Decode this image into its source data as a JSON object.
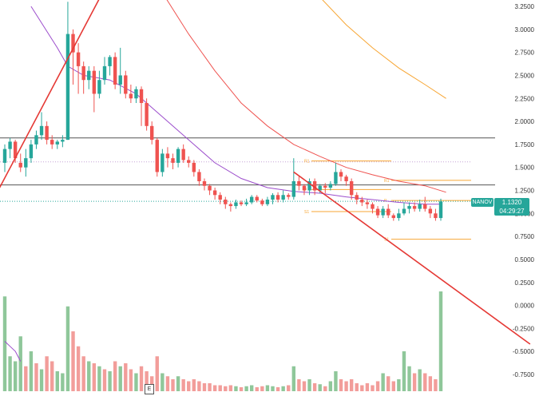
{
  "chart_data": {
    "type": "candlestick",
    "symbol": "NANOV",
    "last_price": "1.1320",
    "countdown": "04:29:27",
    "price_axis": {
      "ticks": [
        "3.2500",
        "3.0000",
        "2.7500",
        "2.5000",
        "2.2500",
        "2.0000",
        "1.7500",
        "1.5000",
        "1.2500",
        "1.0000",
        "0.7500",
        "0.5000",
        "0.2500",
        "0.0000",
        "-0.2500",
        "-0.5000",
        "-0.7500"
      ],
      "tick_values": [
        3.25,
        3.0,
        2.75,
        2.5,
        2.25,
        2.0,
        1.75,
        1.5,
        1.25,
        1.0,
        0.75,
        0.5,
        0.25,
        0.0,
        -0.25,
        -0.5,
        -0.75
      ],
      "range": [
        -0.98,
        3.33
      ]
    },
    "candles": [
      [
        1.55,
        1.7,
        1.45,
        1.75
      ],
      [
        1.7,
        1.78,
        1.6,
        1.82
      ],
      [
        1.78,
        1.6,
        1.55,
        1.8
      ],
      [
        1.55,
        1.5,
        1.45,
        1.65
      ],
      [
        1.5,
        1.6,
        1.4,
        1.7
      ],
      [
        1.6,
        1.75,
        1.55,
        1.8
      ],
      [
        1.75,
        1.85,
        1.7,
        1.9
      ],
      [
        1.85,
        1.95,
        1.8,
        2.1
      ],
      [
        1.95,
        1.8,
        1.75,
        2.0
      ],
      [
        1.8,
        1.75,
        1.7,
        1.85
      ],
      [
        1.75,
        1.78,
        1.7,
        1.8
      ],
      [
        1.78,
        1.8,
        1.72,
        1.85
      ],
      [
        1.8,
        2.95,
        1.8,
        3.3
      ],
      [
        2.95,
        2.75,
        2.4,
        3.0
      ],
      [
        2.75,
        2.6,
        2.3,
        2.85
      ],
      [
        2.6,
        2.45,
        2.3,
        2.65
      ],
      [
        2.45,
        2.55,
        2.35,
        2.6
      ],
      [
        2.55,
        2.3,
        2.1,
        2.6
      ],
      [
        2.3,
        2.45,
        2.25,
        2.55
      ],
      [
        2.45,
        2.6,
        2.4,
        2.7
      ],
      [
        2.6,
        2.7,
        2.5,
        2.72
      ],
      [
        2.7,
        2.4,
        2.35,
        2.75
      ],
      [
        2.4,
        2.5,
        2.3,
        2.8
      ],
      [
        2.5,
        2.3,
        2.25,
        2.55
      ],
      [
        2.3,
        2.25,
        2.2,
        2.4
      ],
      [
        2.25,
        2.35,
        2.2,
        2.38
      ],
      [
        2.35,
        2.2,
        1.95,
        2.38
      ],
      [
        2.2,
        1.95,
        1.9,
        2.25
      ],
      [
        1.95,
        1.8,
        1.75,
        2.0
      ],
      [
        1.8,
        1.45,
        1.4,
        1.82
      ],
      [
        1.45,
        1.65,
        1.4,
        1.7
      ],
      [
        1.65,
        1.6,
        1.5,
        1.72
      ],
      [
        1.6,
        1.55,
        1.48,
        1.65
      ],
      [
        1.55,
        1.7,
        1.5,
        1.72
      ],
      [
        1.7,
        1.58,
        1.55,
        1.75
      ],
      [
        1.58,
        1.55,
        1.5,
        1.62
      ],
      [
        1.55,
        1.45,
        1.4,
        1.58
      ],
      [
        1.45,
        1.35,
        1.3,
        1.48
      ],
      [
        1.35,
        1.3,
        1.25,
        1.38
      ],
      [
        1.3,
        1.25,
        1.2,
        1.32
      ],
      [
        1.25,
        1.2,
        1.15,
        1.28
      ],
      [
        1.2,
        1.15,
        1.1,
        1.23
      ],
      [
        1.15,
        1.1,
        1.05,
        1.18
      ],
      [
        1.1,
        1.08,
        1.02,
        1.12
      ],
      [
        1.08,
        1.12,
        1.05,
        1.15
      ],
      [
        1.12,
        1.1,
        1.08,
        1.14
      ],
      [
        1.1,
        1.12,
        1.08,
        1.16
      ],
      [
        1.12,
        1.18,
        1.1,
        1.2
      ],
      [
        1.18,
        1.14,
        1.12,
        1.2
      ],
      [
        1.14,
        1.1,
        1.08,
        1.16
      ],
      [
        1.1,
        1.15,
        1.08,
        1.18
      ],
      [
        1.15,
        1.2,
        1.1,
        1.22
      ],
      [
        1.2,
        1.15,
        1.12,
        1.23
      ],
      [
        1.15,
        1.2,
        1.12,
        1.25
      ],
      [
        1.2,
        1.18,
        1.15,
        1.22
      ],
      [
        1.18,
        1.35,
        1.15,
        1.6
      ],
      [
        1.35,
        1.3,
        1.25,
        1.4
      ],
      [
        1.3,
        1.25,
        1.2,
        1.32
      ],
      [
        1.25,
        1.35,
        1.2,
        1.38
      ],
      [
        1.35,
        1.25,
        1.2,
        1.38
      ],
      [
        1.25,
        1.3,
        1.22,
        1.32
      ],
      [
        1.3,
        1.28,
        1.22,
        1.33
      ],
      [
        1.28,
        1.32,
        1.25,
        1.35
      ],
      [
        1.32,
        1.45,
        1.3,
        1.55
      ],
      [
        1.45,
        1.4,
        1.35,
        1.48
      ],
      [
        1.4,
        1.35,
        1.3,
        1.42
      ],
      [
        1.35,
        1.2,
        1.15,
        1.38
      ],
      [
        1.2,
        1.15,
        1.1,
        1.23
      ],
      [
        1.15,
        1.12,
        1.08,
        1.18
      ],
      [
        1.12,
        1.1,
        1.05,
        1.15
      ],
      [
        1.1,
        1.05,
        1.0,
        1.12
      ],
      [
        1.05,
        0.98,
        0.95,
        1.08
      ],
      [
        0.98,
        1.05,
        0.95,
        1.08
      ],
      [
        1.05,
        0.98,
        0.95,
        1.1
      ],
      [
        0.98,
        0.95,
        0.92,
        1.0
      ],
      [
        0.95,
        1.0,
        0.92,
        1.05
      ],
      [
        1.0,
        1.05,
        0.98,
        1.12
      ],
      [
        1.05,
        1.08,
        1.0,
        1.12
      ],
      [
        1.08,
        1.05,
        1.02,
        1.12
      ],
      [
        1.05,
        1.1,
        1.02,
        1.15
      ],
      [
        1.1,
        1.05,
        1.02,
        1.18
      ],
      [
        1.05,
        1.0,
        0.95,
        1.08
      ],
      [
        1.0,
        0.95,
        0.92,
        1.05
      ],
      [
        0.95,
        1.13,
        0.92,
        1.16
      ]
    ],
    "volumes": [
      [
        0.95,
        "up"
      ],
      [
        0.35,
        "up"
      ],
      [
        0.3,
        "up"
      ],
      [
        0.55,
        "up"
      ],
      [
        0.25,
        "down"
      ],
      [
        0.4,
        "up"
      ],
      [
        0.28,
        "down"
      ],
      [
        0.22,
        "up"
      ],
      [
        0.35,
        "down"
      ],
      [
        0.3,
        "down"
      ],
      [
        0.2,
        "up"
      ],
      [
        0.18,
        "up"
      ],
      [
        0.85,
        "up"
      ],
      [
        0.6,
        "down"
      ],
      [
        0.45,
        "down"
      ],
      [
        0.35,
        "down"
      ],
      [
        0.3,
        "up"
      ],
      [
        0.28,
        "down"
      ],
      [
        0.25,
        "up"
      ],
      [
        0.22,
        "down"
      ],
      [
        0.2,
        "up"
      ],
      [
        0.3,
        "down"
      ],
      [
        0.25,
        "up"
      ],
      [
        0.28,
        "down"
      ],
      [
        0.22,
        "down"
      ],
      [
        0.18,
        "up"
      ],
      [
        0.25,
        "down"
      ],
      [
        0.2,
        "down"
      ],
      [
        0.15,
        "down"
      ],
      [
        0.35,
        "down"
      ],
      [
        0.18,
        "up"
      ],
      [
        0.15,
        "down"
      ],
      [
        0.12,
        "down"
      ],
      [
        0.15,
        "up"
      ],
      [
        0.12,
        "down"
      ],
      [
        0.1,
        "down"
      ],
      [
        0.12,
        "down"
      ],
      [
        0.1,
        "down"
      ],
      [
        0.08,
        "down"
      ],
      [
        0.08,
        "down"
      ],
      [
        0.06,
        "down"
      ],
      [
        0.06,
        "down"
      ],
      [
        0.05,
        "down"
      ],
      [
        0.06,
        "down"
      ],
      [
        0.05,
        "up"
      ],
      [
        0.04,
        "down"
      ],
      [
        0.05,
        "up"
      ],
      [
        0.06,
        "up"
      ],
      [
        0.04,
        "down"
      ],
      [
        0.05,
        "down"
      ],
      [
        0.06,
        "up"
      ],
      [
        0.05,
        "up"
      ],
      [
        0.04,
        "down"
      ],
      [
        0.05,
        "up"
      ],
      [
        0.06,
        "down"
      ],
      [
        0.25,
        "up"
      ],
      [
        0.12,
        "down"
      ],
      [
        0.1,
        "down"
      ],
      [
        0.12,
        "up"
      ],
      [
        0.08,
        "down"
      ],
      [
        0.07,
        "up"
      ],
      [
        0.05,
        "down"
      ],
      [
        0.1,
        "up"
      ],
      [
        0.2,
        "up"
      ],
      [
        0.12,
        "down"
      ],
      [
        0.1,
        "down"
      ],
      [
        0.12,
        "down"
      ],
      [
        0.08,
        "down"
      ],
      [
        0.06,
        "down"
      ],
      [
        0.08,
        "down"
      ],
      [
        0.06,
        "down"
      ],
      [
        0.1,
        "down"
      ],
      [
        0.18,
        "up"
      ],
      [
        0.15,
        "down"
      ],
      [
        0.1,
        "down"
      ],
      [
        0.12,
        "up"
      ],
      [
        0.4,
        "up"
      ],
      [
        0.25,
        "up"
      ],
      [
        0.18,
        "down"
      ],
      [
        0.22,
        "up"
      ],
      [
        0.18,
        "down"
      ],
      [
        0.15,
        "down"
      ],
      [
        0.12,
        "down"
      ],
      [
        1.0,
        "up"
      ]
    ],
    "horizontal_lines": [
      {
        "price": 1.82,
        "color": "#555555"
      },
      {
        "price": 1.31,
        "color": "#555555"
      }
    ],
    "dotted_lines": [
      {
        "price": 1.56,
        "color": "#c5a3d6"
      },
      {
        "price": 1.132,
        "color": "#26a69a"
      }
    ],
    "pivot_levels": [
      {
        "label": "R1",
        "price": 1.57,
        "color": "#f7a634"
      },
      {
        "label": "P",
        "price": 1.26,
        "color": "#f7a634"
      },
      {
        "label": "S1",
        "price": 1.02,
        "color": "#f7a634"
      },
      {
        "label": "R1",
        "price": 1.36,
        "color": "#f7a634"
      },
      {
        "label": "P",
        "price": 1.14,
        "color": "#f7a634"
      },
      {
        "label": "S1",
        "price": 0.72,
        "color": "#f7a634"
      }
    ],
    "trendlines": [
      {
        "from": [
          -0.98,
          1.28
        ],
        "to": [
          20.0,
          3.55
        ],
        "color": "#e53935"
      },
      {
        "from": [
          55.0,
          1.45
        ],
        "to": [
          100.0,
          -0.42
        ],
        "color": "#e53935"
      }
    ],
    "moving_averages": [
      {
        "color": "#9c4dcc",
        "points": [
          [
            5,
            3.25
          ],
          [
            10,
            2.8
          ],
          [
            12,
            2.6
          ],
          [
            15,
            2.5
          ],
          [
            20,
            2.45
          ],
          [
            25,
            2.3
          ],
          [
            30,
            2.05
          ],
          [
            35,
            1.8
          ],
          [
            40,
            1.55
          ],
          [
            45,
            1.38
          ],
          [
            50,
            1.28
          ],
          [
            55,
            1.24
          ],
          [
            60,
            1.22
          ],
          [
            65,
            1.18
          ],
          [
            70,
            1.15
          ],
          [
            75,
            1.12
          ],
          [
            80,
            1.1
          ],
          [
            83,
            1.1
          ]
        ]
      },
      {
        "color": "#ef5350",
        "points": [
          [
            30,
            3.4
          ],
          [
            35,
            2.95
          ],
          [
            40,
            2.55
          ],
          [
            45,
            2.2
          ],
          [
            50,
            1.95
          ],
          [
            55,
            1.75
          ],
          [
            60,
            1.62
          ],
          [
            65,
            1.5
          ],
          [
            70,
            1.42
          ],
          [
            75,
            1.35
          ],
          [
            80,
            1.3
          ],
          [
            84,
            1.23
          ]
        ]
      },
      {
        "color": "#f7a634",
        "points": [
          [
            60,
            3.35
          ],
          [
            65,
            3.05
          ],
          [
            70,
            2.8
          ],
          [
            75,
            2.58
          ],
          [
            80,
            2.4
          ],
          [
            84,
            2.25
          ]
        ]
      },
      {
        "color": "#9c4dcc",
        "panel": "volume",
        "points": [
          [
            0,
            0.5
          ],
          [
            1,
            0.45
          ],
          [
            2,
            0.4
          ],
          [
            3,
            0.3
          ]
        ]
      }
    ]
  }
}
